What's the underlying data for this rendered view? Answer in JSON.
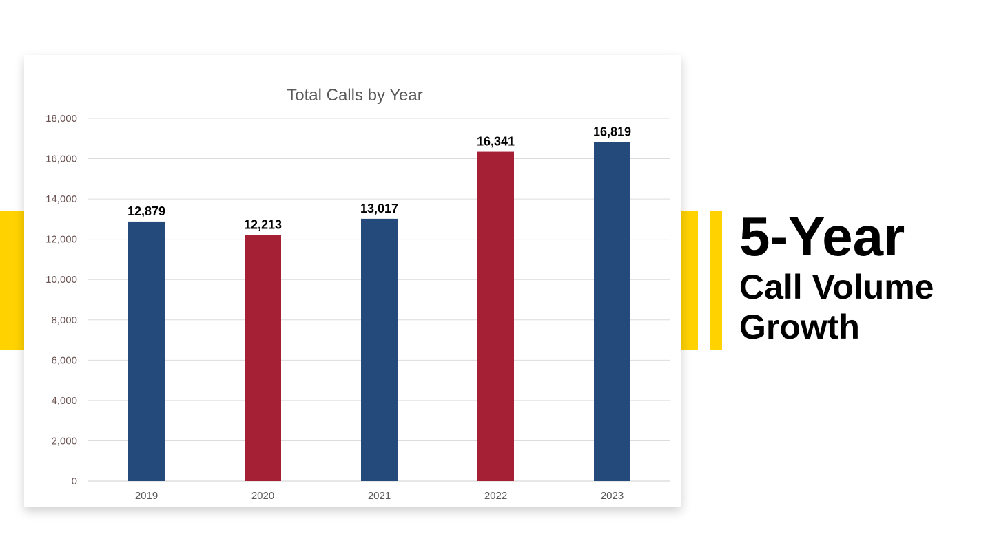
{
  "colors": {
    "accent": "#FFD200",
    "blue": "#244A7C",
    "red": "#A51F35"
  },
  "headline": {
    "big": "5-Year",
    "line1": "Call Volume",
    "line2": "Growth"
  },
  "chart_data": {
    "type": "bar",
    "title": "Total Calls by Year",
    "categories": [
      "2019",
      "2020",
      "2021",
      "2022",
      "2023"
    ],
    "values": [
      12879,
      12213,
      13017,
      16341,
      16819
    ],
    "data_labels": [
      "12,879",
      "12,213",
      "13,017",
      "16,341",
      "16,819"
    ],
    "bar_colors": [
      "#244A7C",
      "#A51F35",
      "#244A7C",
      "#A51F35",
      "#244A7C"
    ],
    "ylim": [
      0,
      18000
    ],
    "yticks": [
      "0",
      "2,000",
      "4,000",
      "6,000",
      "8,000",
      "10,000",
      "12,000",
      "14,000",
      "16,000",
      "18,000"
    ],
    "xlabel": "",
    "ylabel": "",
    "grid": true,
    "legend": "none"
  }
}
